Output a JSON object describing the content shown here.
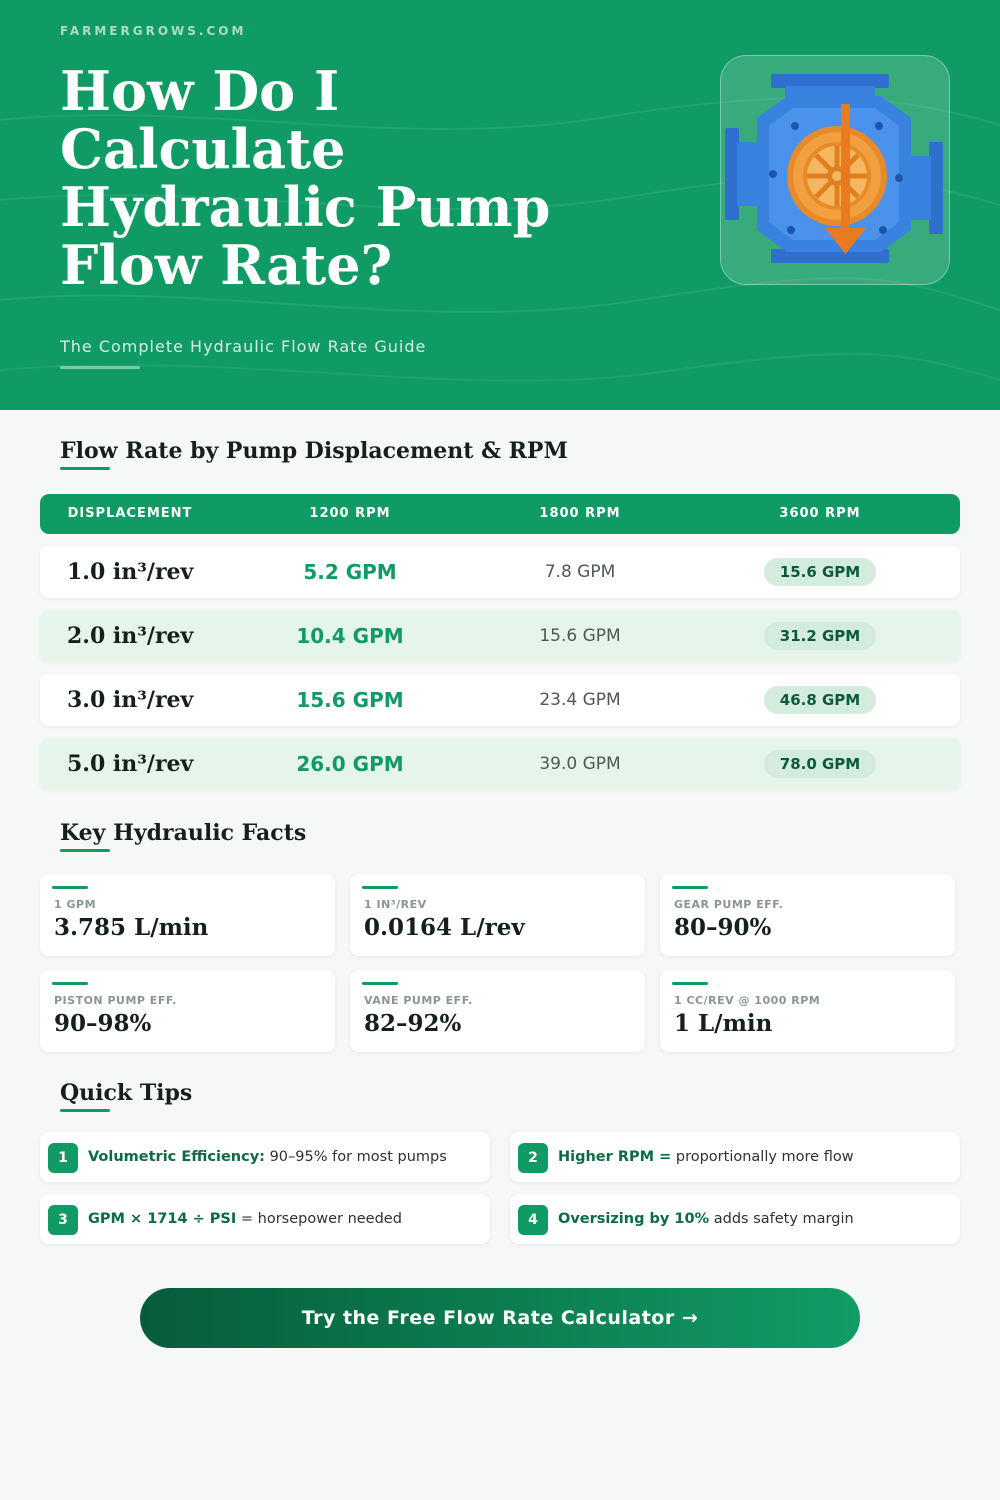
{
  "site": "FARMERGROWS.COM",
  "hero": {
    "title": "How Do I Calculate Hydraulic Pump Flow Rate?",
    "subtitle": "The Complete Hydraulic Flow Rate Guide",
    "illustration": "hydraulic-pump-icon"
  },
  "table": {
    "title": "Flow Rate by Pump Displacement & RPM",
    "headers": [
      "DISPLACEMENT",
      "1200 RPM",
      "1800 RPM",
      "3600 RPM"
    ],
    "rows": [
      {
        "displacement": "1.0 in³/rev",
        "rpm1200": "5.2 GPM",
        "rpm1800": "7.8 GPM",
        "rpm3600": "15.6 GPM"
      },
      {
        "displacement": "2.0 in³/rev",
        "rpm1200": "10.4 GPM",
        "rpm1800": "15.6 GPM",
        "rpm3600": "31.2 GPM"
      },
      {
        "displacement": "3.0 in³/rev",
        "rpm1200": "15.6 GPM",
        "rpm1800": "23.4 GPM",
        "rpm3600": "46.8 GPM"
      },
      {
        "displacement": "5.0 in³/rev",
        "rpm1200": "26.0 GPM",
        "rpm1800": "39.0 GPM",
        "rpm3600": "78.0 GPM"
      }
    ]
  },
  "facts": {
    "title": "Key Hydraulic Facts",
    "items": [
      {
        "label": "1 GPM",
        "value": "3.785 L/min"
      },
      {
        "label": "1 IN³/REV",
        "value": "0.0164 L/rev"
      },
      {
        "label": "GEAR PUMP EFF.",
        "value": "80–90%"
      },
      {
        "label": "PISTON PUMP EFF.",
        "value": "90–98%"
      },
      {
        "label": "VANE PUMP EFF.",
        "value": "82–92%"
      },
      {
        "label": "1 CC/REV @ 1000 RPM",
        "value": "1 L/min"
      }
    ]
  },
  "tips": {
    "title": "Quick Tips",
    "items": [
      {
        "num": "1",
        "bold": "Volumetric Efficiency:",
        "text": " 90–95% for most pumps"
      },
      {
        "num": "2",
        "bold": "Higher RPM =",
        "text": " proportionally more flow"
      },
      {
        "num": "3",
        "bold": "GPM × 1714 ÷ PSI",
        "text": " = horsepower needed"
      },
      {
        "num": "4",
        "bold": "Oversizing by 10%",
        "text": " adds safety margin"
      }
    ]
  },
  "cta": {
    "label": "Try the Free Flow Rate Calculator →"
  },
  "colors": {
    "brand": "#119b64",
    "dark": "#075c3b",
    "pill": "#d3ecdd",
    "row_alt": "#e6f5ec",
    "pump_blue": "#3a82e0",
    "pump_orange": "#f0a040"
  }
}
